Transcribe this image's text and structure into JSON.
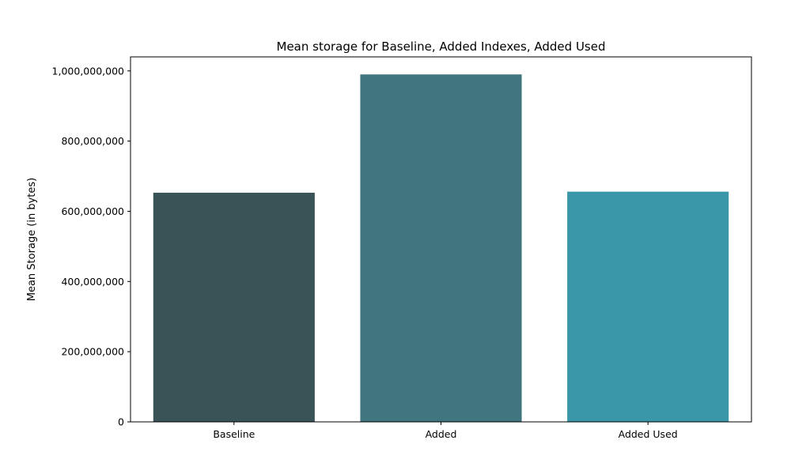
{
  "chart_data": {
    "type": "bar",
    "title": "Mean storage for Baseline, Added Indexes, Added Used",
    "xlabel": "",
    "ylabel": "Mean Storage (in bytes)",
    "categories": [
      "Baseline",
      "Added",
      "Added Used"
    ],
    "values": [
      653000000,
      990000000,
      656000000
    ],
    "colors": [
      "#3a5356",
      "#41767f",
      "#3a97a9"
    ],
    "ylim": [
      0,
      1040000000
    ],
    "yticks": [
      0,
      200000000,
      400000000,
      600000000,
      800000000,
      1000000000
    ],
    "ytick_labels": [
      "0",
      "200,000,000",
      "400,000,000",
      "600,000,000",
      "800,000,000",
      "1,000,000,000"
    ],
    "grid": false,
    "legend": "none"
  }
}
